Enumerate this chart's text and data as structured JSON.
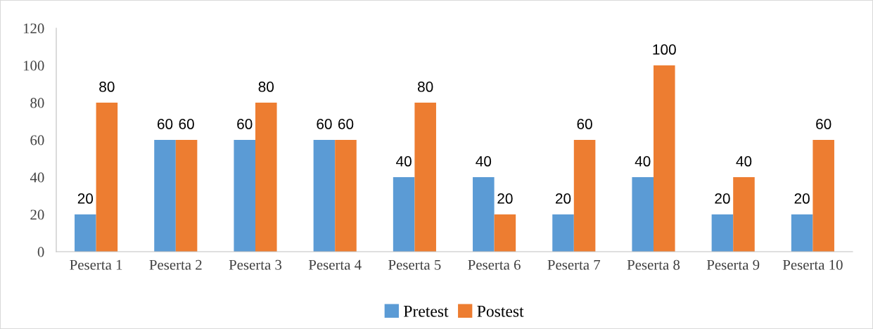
{
  "chart_data": {
    "type": "bar",
    "categories": [
      "Peserta 1",
      "Peserta 2",
      "Peserta 3",
      "Peserta 4",
      "Peserta 5",
      "Peserta 6",
      "Peserta 7",
      "Peserta 8",
      "Peserta 9",
      "Peserta 10"
    ],
    "series": [
      {
        "name": "Pretest",
        "color": "#5b9bd5",
        "values": [
          20,
          60,
          60,
          60,
          40,
          40,
          20,
          40,
          20,
          20
        ]
      },
      {
        "name": "Postest",
        "color": "#ed7d31",
        "values": [
          80,
          60,
          80,
          60,
          80,
          20,
          60,
          100,
          40,
          60
        ]
      }
    ],
    "ylim": [
      0,
      120
    ],
    "yticks": [
      0,
      20,
      40,
      60,
      80,
      100,
      120
    ],
    "grid": false,
    "legend": "bottom",
    "data_labels": true
  }
}
